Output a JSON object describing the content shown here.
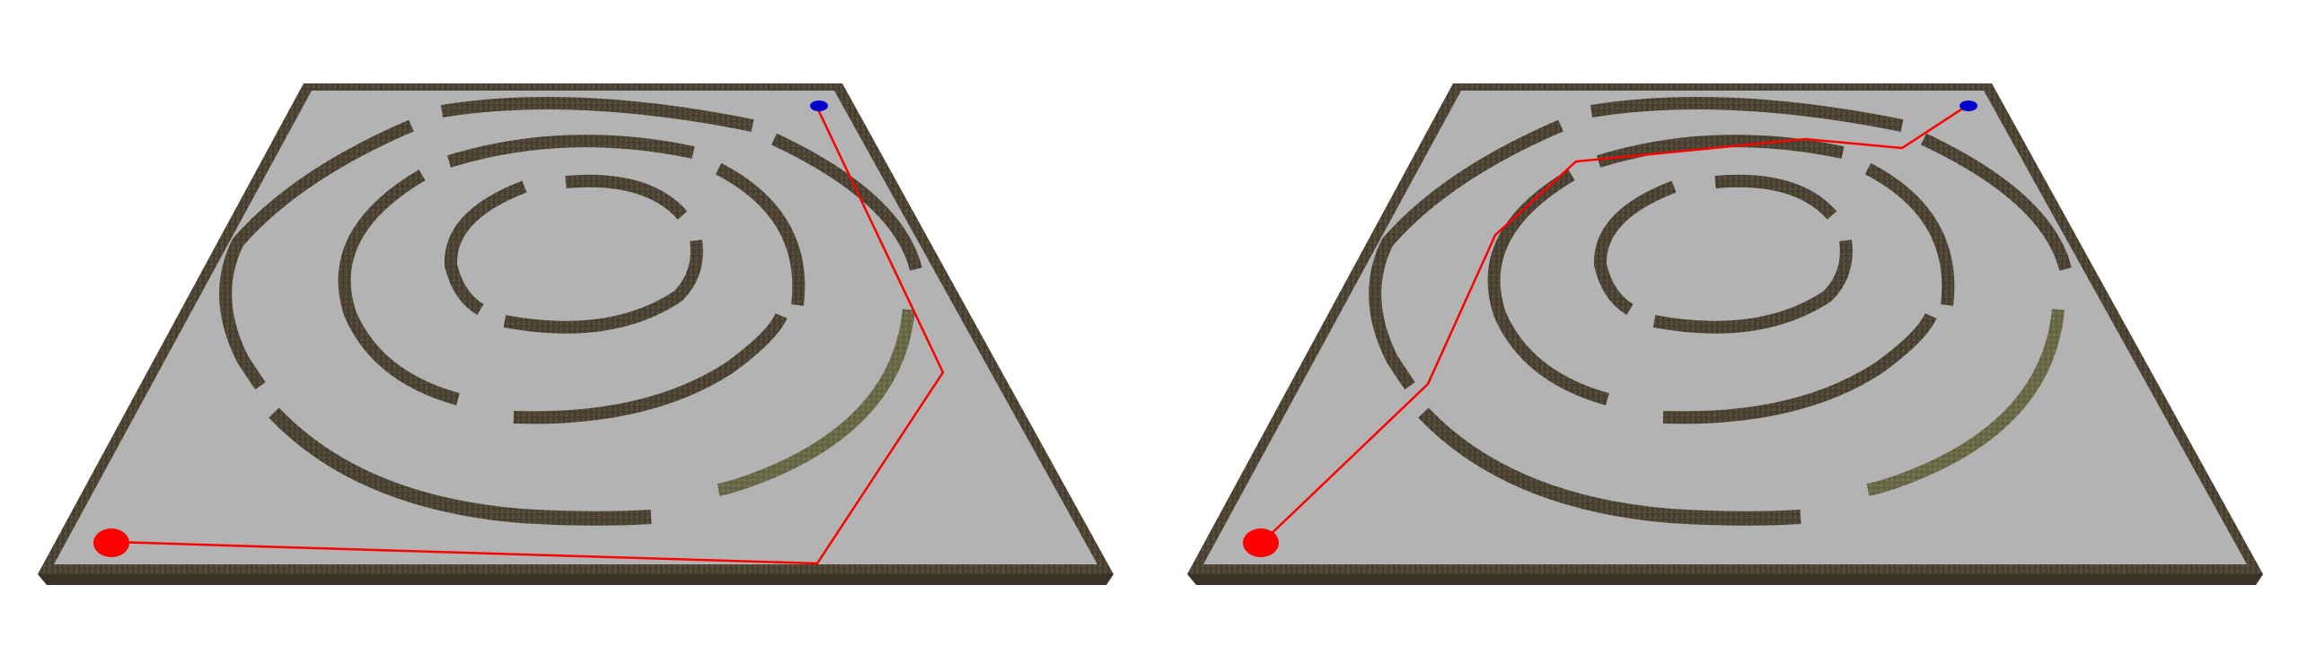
{
  "colors": {
    "background": "#ffffff",
    "floor": "#b3b3b3",
    "border_wall": "#4e4434",
    "border_wall_edge": "#2e271c",
    "maze_wall": "#4e4434",
    "maze_wall_side": "#3a3226",
    "highlight_wall": "#6b6a48",
    "start_marker": "#ff0000",
    "goal_marker": "#0000cc",
    "path": "#ff0000"
  },
  "views": [
    {
      "label": "",
      "start_marker": "red-ball",
      "goal_marker": "blue-goal",
      "path_style": "direct-through-walls"
    },
    {
      "label": "",
      "start_marker": "red-ball",
      "goal_marker": "blue-goal",
      "path_style": "through-ring-gaps"
    }
  ]
}
